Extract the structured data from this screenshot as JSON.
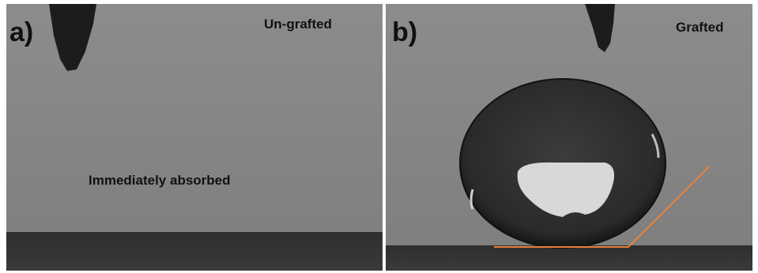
{
  "panels": [
    {
      "label": "a)",
      "caption": "Un-grafted",
      "note": "Immediately absorbed"
    },
    {
      "label": "b)",
      "caption": "Grafted"
    }
  ]
}
